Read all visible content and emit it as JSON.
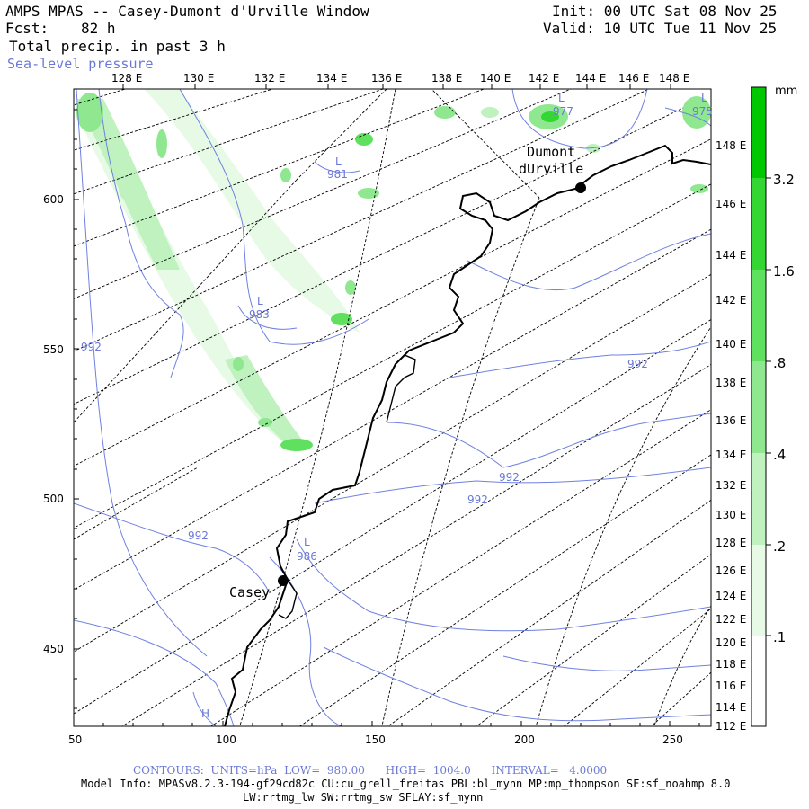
{
  "header": {
    "title": "AMPS MPAS -- Casey-Dumont d'Urville Window",
    "fcst_label": "Fcst:",
    "fcst_value": "82 h",
    "field": "Total precip. in past 3 h",
    "overlay": "Sea-level pressure",
    "init": "Init: 00 UTC Sat 08 Nov 25",
    "valid": "Valid: 10 UTC Tue 11 Nov 25"
  },
  "top_lon_labels": [
    "128 E",
    "130 E",
    "132 E",
    "134 E",
    "136 E",
    "138 E",
    "140 E",
    "142 E",
    "144 E",
    "146 E",
    "148 E"
  ],
  "right_lon_labels": [
    "148 E",
    "146 E",
    "144 E",
    "142 E",
    "140 E",
    "138 E",
    "136 E",
    "134 E",
    "132 E",
    "130 E",
    "128 E",
    "126 E",
    "124 E",
    "122 E",
    "120 E",
    "118 E",
    "116 E",
    "114 E",
    "112 E"
  ],
  "x_ticks": [
    "50",
    "100",
    "150",
    "200",
    "250"
  ],
  "y_ticks": [
    "600",
    "550",
    "500",
    "450"
  ],
  "colorbar": {
    "unit": "mm",
    "labels": [
      "3.2",
      "1.6",
      ".8",
      ".4",
      ".2",
      ".1"
    ],
    "colors": [
      "#00c800",
      "#33d633",
      "#5fe05f",
      "#8fe88f",
      "#bff2bf",
      "#e6fae6"
    ]
  },
  "stations": {
    "casey": "Casey",
    "dumont_1": "Dumont",
    "dumont_2": "dUrville"
  },
  "pressure_labels": [
    "L",
    "977",
    "L",
    "975",
    "L",
    "981",
    "L",
    "983",
    "992",
    "992",
    "992",
    "992",
    "992",
    "L",
    "986",
    "H"
  ],
  "footer": {
    "contours": "CONTOURS:  UNITS=hPa  LOW=  980.00      HIGH=  1004.0      INTERVAL=   4.0000",
    "model_info": "Model Info: MPASv8.2.3-194-gf29cd82c CU:cu_grell_freitas PBL:bl_mynn MP:mp_thompson SF:sf_noahmp 8.0",
    "physics": "LW:rrtmg_lw SW:rrtmg_sw SFLAY:sf_mynn"
  }
}
